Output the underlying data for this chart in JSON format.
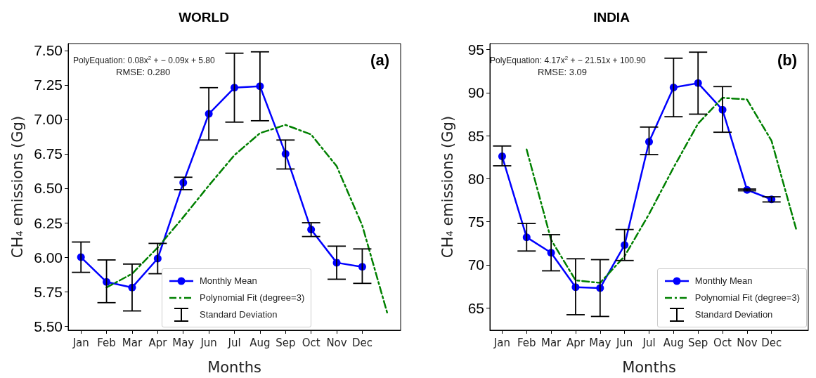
{
  "chart_data": [
    {
      "type": "line",
      "title": "WORLD",
      "xlabel": "Months",
      "ylabel": "CH₄ emissions (Gg)",
      "categories": [
        "Jan",
        "Feb",
        "Mar",
        "Apr",
        "May",
        "Jun",
        "Jul",
        "Aug",
        "Sep",
        "Oct",
        "Nov",
        "Dec",
        null
      ],
      "series": [
        {
          "name": "Monthly Mean",
          "color": "#0000ff",
          "marker": "circle",
          "line_style": "solid",
          "values": [
            6.0,
            5.82,
            5.78,
            5.99,
            6.54,
            7.04,
            7.23,
            7.24,
            6.75,
            6.2,
            5.96,
            5.93,
            null
          ],
          "errors": [
            [
              5.89,
              6.11
            ],
            [
              5.67,
              5.98
            ],
            [
              5.61,
              5.95
            ],
            [
              5.88,
              6.1
            ],
            [
              6.49,
              6.58
            ],
            [
              6.85,
              7.23
            ],
            [
              6.98,
              7.48
            ],
            [
              6.99,
              7.49
            ],
            [
              6.64,
              6.85
            ],
            [
              6.15,
              6.25
            ],
            [
              5.84,
              6.08
            ],
            [
              5.81,
              6.06
            ],
            null
          ]
        },
        {
          "name": "Polynomial Fit (degree=3)",
          "color": "#008000",
          "marker": "none",
          "line_style": "dashdot",
          "values": [
            null,
            5.78,
            5.88,
            6.07,
            6.29,
            6.52,
            6.74,
            6.9,
            6.96,
            6.89,
            6.66,
            6.23,
            5.58
          ]
        }
      ],
      "ylim": [
        5.47,
        7.55
      ],
      "yticks": [
        {
          "value": 5.5,
          "label": "5.50"
        },
        {
          "value": 5.75,
          "label": "5.75"
        },
        {
          "value": 6,
          "label": "6.00"
        },
        {
          "value": 6.25,
          "label": "6.25"
        },
        {
          "value": 6.5,
          "label": "6.50"
        },
        {
          "value": 6.75,
          "label": "6.75"
        },
        {
          "value": 7,
          "label": "7.00"
        },
        {
          "value": 7.25,
          "label": "7.25"
        },
        {
          "value": 7.5,
          "label": "7.50"
        }
      ],
      "grid": false,
      "legend": "bottom",
      "annotations": [
        "PolyEquation: 0.08x$^{2}$ + − 0.09x + 5.80",
        "RMSE: 0.280",
        "(a)",
        "Standard Deviation"
      ]
    },
    {
      "type": "line",
      "title": "INDIA",
      "xlabel": "Months",
      "ylabel": "CH₄ emissions (Gg)",
      "categories": [
        "Jan",
        "Feb",
        "Mar",
        "Apr",
        "May",
        "Jun",
        "Jul",
        "Aug",
        "Sep",
        "Oct",
        "Nov",
        "Dec",
        null
      ],
      "series": [
        {
          "name": "Monthly Mean",
          "color": "#0000ff",
          "marker": "circle",
          "line_style": "solid",
          "values": [
            82.6,
            73.2,
            71.4,
            67.4,
            67.3,
            72.3,
            84.3,
            90.6,
            91.1,
            88.0,
            78.7,
            77.6,
            null
          ],
          "errors": [
            [
              81.5,
              83.8
            ],
            [
              71.6,
              74.8
            ],
            [
              69.3,
              73.5
            ],
            [
              64.2,
              70.7
            ],
            [
              64.0,
              70.6
            ],
            [
              70.5,
              74.1
            ],
            [
              82.8,
              86.0
            ],
            [
              87.2,
              94.0
            ],
            [
              87.5,
              94.7
            ],
            [
              85.4,
              90.7
            ],
            [
              78.6,
              78.8
            ],
            [
              77.3,
              77.9
            ],
            null
          ]
        },
        {
          "name": "Polynomial Fit (degree=3)",
          "color": "#008000",
          "marker": "none",
          "line_style": "dashdot",
          "values": [
            null,
            83.4,
            72.9,
            68.2,
            67.9,
            71.0,
            75.9,
            81.3,
            86.4,
            89.4,
            89.2,
            84.4,
            74.2
          ]
        }
      ],
      "ylim": [
        62.4,
        95.7
      ],
      "yticks": [
        65,
        70,
        75,
        80,
        85,
        90,
        95
      ],
      "grid": false,
      "legend": "bottom right",
      "annotations": [
        "PolyEquation: 4.17x$^{2}$ + − 21.51x + 100.90",
        "RMSE: 3.09",
        "(b)",
        "Standard Deviation"
      ]
    }
  ]
}
